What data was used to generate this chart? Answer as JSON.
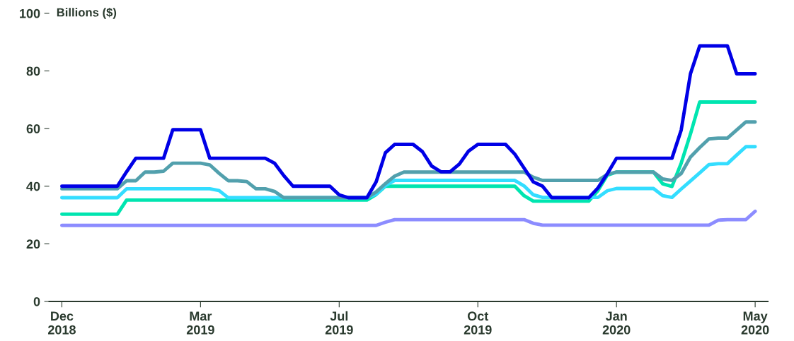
{
  "chart_data": {
    "type": "line",
    "ylabel": "Billions ($)",
    "ylim": [
      0,
      100
    ],
    "yticks": [
      0,
      20,
      40,
      60,
      80,
      100
    ],
    "grid": false,
    "legend": false,
    "marker": "none",
    "line_style": "solid",
    "categories": [
      "Dec\n2018",
      null,
      null,
      null,
      null,
      null,
      null,
      null,
      null,
      null,
      null,
      null,
      null,
      null,
      null,
      "Mar\n2019",
      null,
      null,
      null,
      null,
      null,
      null,
      null,
      null,
      null,
      null,
      null,
      null,
      null,
      null,
      "Jul\n2019",
      null,
      null,
      null,
      null,
      null,
      null,
      null,
      null,
      null,
      null,
      null,
      null,
      null,
      null,
      "Oct\n2019",
      null,
      null,
      null,
      null,
      null,
      null,
      null,
      null,
      null,
      null,
      null,
      null,
      null,
      null,
      "Jan\n2020",
      null,
      null,
      null,
      null,
      null,
      null,
      null,
      null,
      null,
      null,
      null,
      null,
      null,
      null,
      "May\n2020"
    ],
    "series": [
      {
        "color": "#8c8cff",
        "values": [
          26.4,
          26.4,
          26.4,
          26.4,
          26.4,
          26.4,
          26.4,
          26.4,
          26.4,
          26.4,
          26.4,
          26.4,
          26.4,
          26.4,
          26.4,
          26.4,
          26.4,
          26.4,
          26.4,
          26.4,
          26.4,
          26.4,
          26.4,
          26.4,
          26.4,
          26.4,
          26.4,
          26.4,
          26.4,
          26.4,
          26.4,
          26.4,
          26.4,
          26.4,
          26.4,
          27.5,
          28.4,
          28.4,
          28.4,
          28.4,
          28.4,
          28.4,
          28.4,
          28.4,
          28.4,
          28.4,
          28.4,
          28.4,
          28.4,
          28.4,
          28.4,
          27.1,
          26.5,
          26.5,
          26.5,
          26.5,
          26.5,
          26.5,
          26.5,
          26.5,
          26.5,
          26.5,
          26.5,
          26.5,
          26.5,
          26.5,
          26.5,
          26.5,
          26.5,
          26.5,
          26.5,
          28.2,
          28.4,
          28.4,
          28.4,
          31.3
        ]
      },
      {
        "color": "#00e5b0",
        "values": [
          30.3,
          30.3,
          30.3,
          30.3,
          30.3,
          30.3,
          30.3,
          35.2,
          35.2,
          35.2,
          35.2,
          35.2,
          35.2,
          35.2,
          35.2,
          35.2,
          35.2,
          35.2,
          35.2,
          35.2,
          35.2,
          35.2,
          35.2,
          35.2,
          35.2,
          35.2,
          35.2,
          35.2,
          35.2,
          35.2,
          35.2,
          35.2,
          35.2,
          35.2,
          37.1,
          40,
          40,
          40,
          40,
          40,
          40,
          40,
          40,
          40,
          40,
          40,
          40,
          40,
          40,
          40,
          36.7,
          34.8,
          34.8,
          34.8,
          34.8,
          34.8,
          34.8,
          34.8,
          38.5,
          43.8,
          44.9,
          44.9,
          44.9,
          44.9,
          44.9,
          40.8,
          39.9,
          48,
          58.1,
          69.2,
          69.2,
          69.2,
          69.2,
          69.2,
          69.2,
          69.2
        ]
      },
      {
        "color": "#33ddff",
        "values": [
          36,
          36,
          36,
          36,
          36,
          36,
          36,
          39.1,
          39.1,
          39.1,
          39.1,
          39.1,
          39.1,
          39.1,
          39.1,
          39.1,
          39.1,
          38.5,
          36,
          36,
          36,
          36,
          36,
          36,
          36,
          36,
          36,
          36,
          36,
          36,
          36,
          36,
          36,
          36,
          37.2,
          40.2,
          42,
          42,
          42,
          42,
          42,
          42,
          42,
          42,
          42,
          42,
          42,
          42,
          42,
          42,
          40.1,
          37,
          36.1,
          36.1,
          36.1,
          36.1,
          36.1,
          36.1,
          36.1,
          38.4,
          39.2,
          39.2,
          39.2,
          39.2,
          39.2,
          36.7,
          36.1,
          39,
          41.8,
          44.6,
          47.5,
          47.8,
          47.8,
          50.8,
          53.7,
          53.7
        ]
      },
      {
        "color": "#52a0ad",
        "values": [
          39.1,
          39.1,
          39.1,
          39.1,
          39.1,
          39.1,
          39.1,
          41.9,
          41.9,
          44.9,
          44.9,
          45.2,
          48,
          48,
          48,
          48,
          47.4,
          44.5,
          41.9,
          41.9,
          41.6,
          39.1,
          39.1,
          38.2,
          36,
          36,
          36,
          36,
          36,
          36,
          36,
          36,
          36,
          36,
          38,
          40.9,
          43.5,
          44.9,
          44.9,
          44.9,
          44.9,
          44.9,
          44.9,
          44.9,
          44.9,
          44.9,
          44.9,
          44.9,
          44.9,
          44.9,
          44.9,
          43.1,
          42,
          42,
          42,
          42,
          42,
          42,
          42,
          44.1,
          44.9,
          44.9,
          44.9,
          44.9,
          44.9,
          42.5,
          42,
          44.4,
          50.1,
          53.4,
          56.4,
          56.7,
          56.7,
          59.5,
          62.3,
          62.3
        ]
      },
      {
        "color": "#0000e6",
        "values": [
          40,
          40,
          40,
          40,
          40,
          40,
          40,
          45,
          49.7,
          49.7,
          49.7,
          49.7,
          59.6,
          59.6,
          59.6,
          59.6,
          49.7,
          49.7,
          49.7,
          49.7,
          49.7,
          49.7,
          49.7,
          48,
          43.7,
          40,
          40,
          40,
          40,
          40,
          37,
          36,
          36,
          36,
          41.5,
          51.6,
          54.5,
          54.5,
          54.5,
          52,
          47,
          45,
          45,
          47.7,
          52.2,
          54.5,
          54.5,
          54.5,
          54.5,
          51.1,
          46.3,
          41.5,
          40,
          36,
          36,
          36,
          36,
          36,
          39.4,
          44.3,
          49.7,
          49.7,
          49.7,
          49.7,
          49.7,
          49.7,
          49.7,
          59.5,
          79,
          88.7,
          88.7,
          88.7,
          88.7,
          79,
          79,
          79
        ]
      }
    ]
  }
}
